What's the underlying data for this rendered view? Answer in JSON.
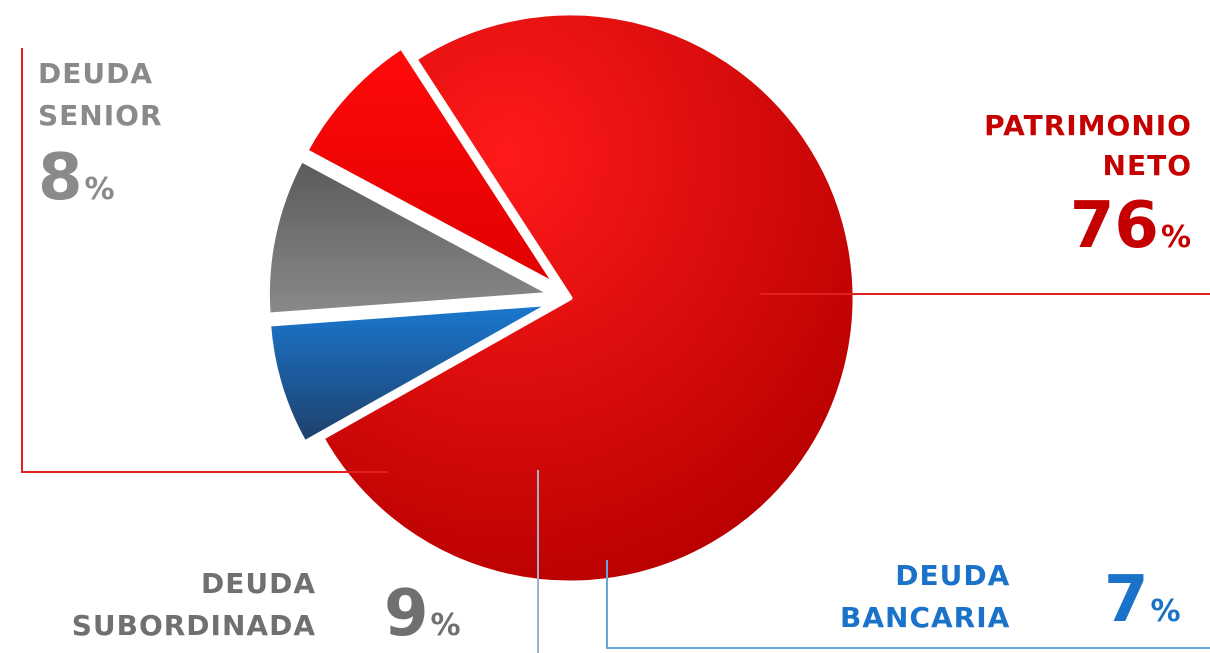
{
  "chart_data": {
    "type": "pie",
    "slices": [
      {
        "name_lines": [
          "PATRIMONIO",
          "NETO"
        ],
        "value": 76,
        "unit": "%",
        "color": "#e60000",
        "label_color": "#c40000",
        "exploded": false
      },
      {
        "name_lines": [
          "DEUDA",
          "BANCARIA"
        ],
        "value": 7,
        "unit": "%",
        "color": "#1f6fbf",
        "label_color": "#1a73c8",
        "exploded": true
      },
      {
        "name_lines": [
          "DEUDA",
          "SUBORDINADA"
        ],
        "value": 9,
        "unit": "%",
        "color": "#666666",
        "label_color": "#707070",
        "exploded": true
      },
      {
        "name_lines": [
          "DEUDA",
          "SENIOR"
        ],
        "value": 8,
        "unit": "%",
        "color": "#f00000",
        "label_color": "#8a8a8a",
        "exploded": true
      }
    ]
  }
}
